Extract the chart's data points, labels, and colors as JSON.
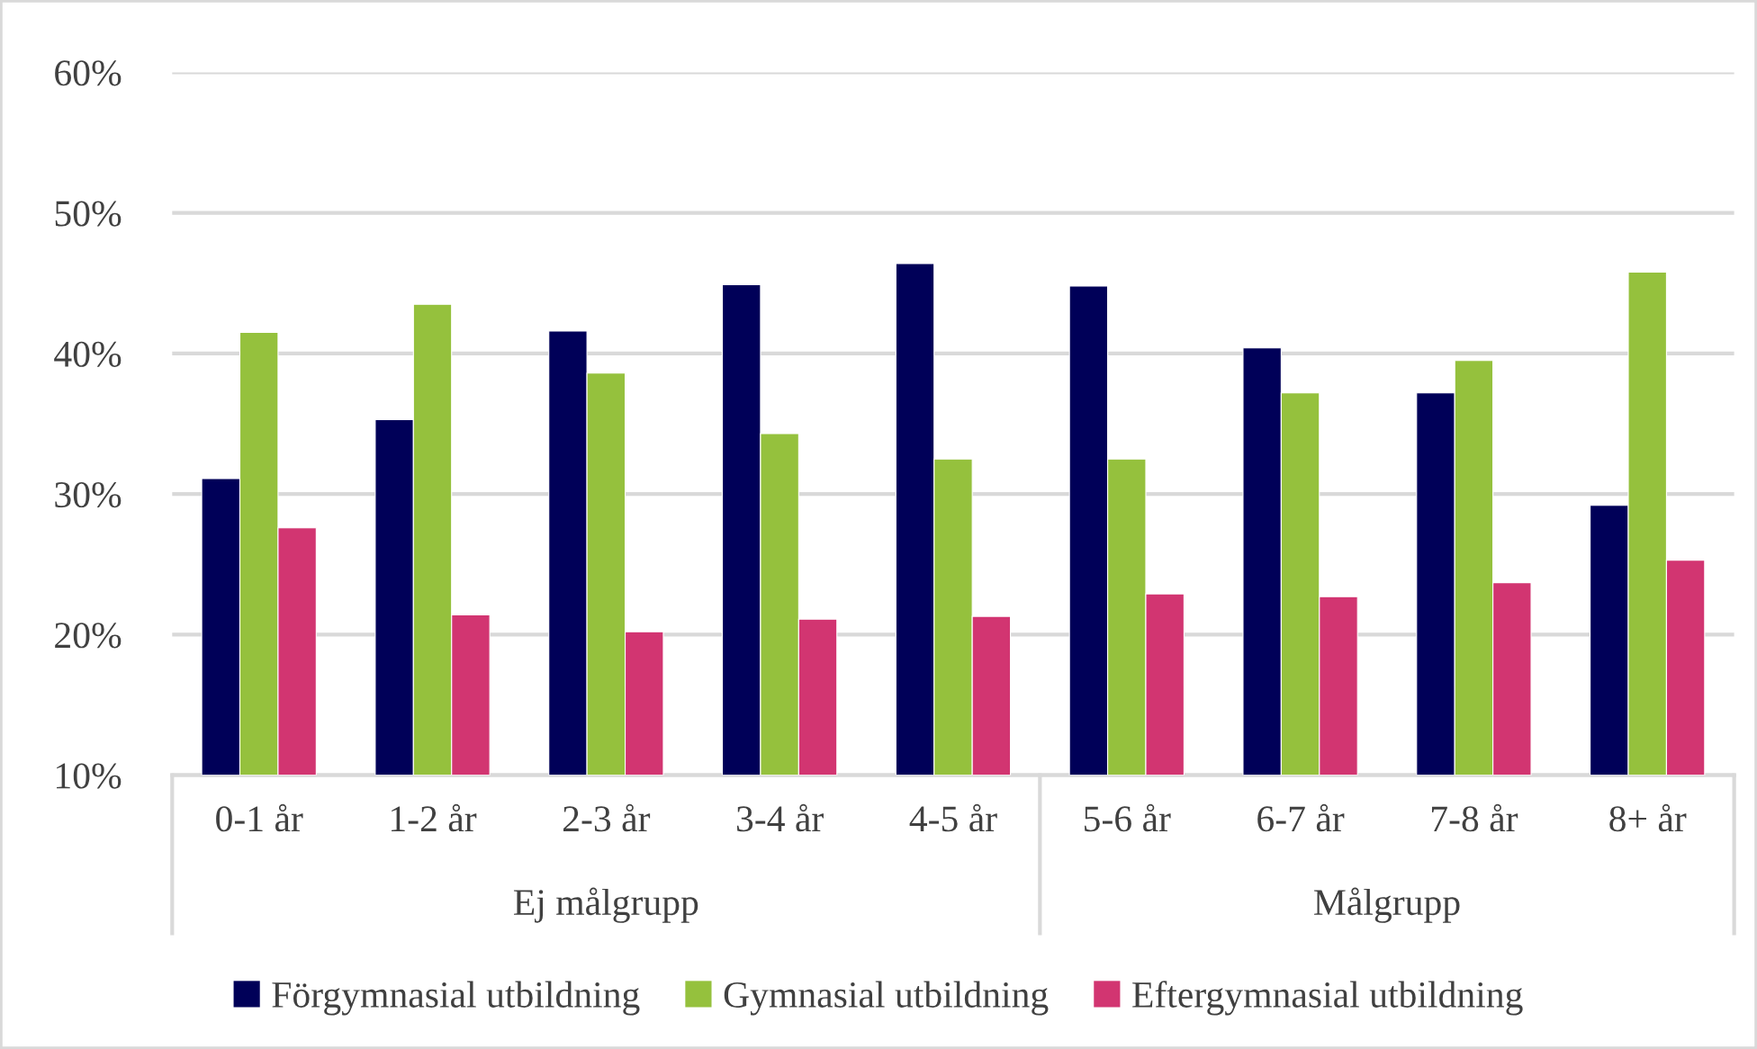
{
  "chart_data": {
    "type": "bar",
    "categories": [
      "0-1 år",
      "1-2 år",
      "2-3 år",
      "3-4 år",
      "4-5 år",
      "5-6 år",
      "6-7 år",
      "7-8 år",
      "8+ år"
    ],
    "series": [
      {
        "name": "Förgymnasial utbildning",
        "color": "#000058",
        "values": [
          31.1,
          35.3,
          41.6,
          44.9,
          46.4,
          44.8,
          40.4,
          37.2,
          29.2
        ]
      },
      {
        "name": "Gymnasial utbildning",
        "color": "#95c13d",
        "values": [
          41.5,
          43.5,
          38.6,
          34.3,
          32.5,
          32.5,
          37.2,
          39.5,
          45.8
        ]
      },
      {
        "name": "Eftergymnasial utbildning",
        "color": "#d23571",
        "values": [
          27.6,
          21.4,
          20.2,
          21.1,
          21.3,
          22.9,
          22.7,
          23.7,
          25.3
        ]
      }
    ],
    "ylim": [
      10,
      60
    ],
    "yticks": [
      {
        "value": 10,
        "label": "10%"
      },
      {
        "value": 20,
        "label": "20%"
      },
      {
        "value": 30,
        "label": "30%"
      },
      {
        "value": 40,
        "label": "40%"
      },
      {
        "value": 50,
        "label": "50%"
      },
      {
        "value": 60,
        "label": "60%"
      }
    ],
    "annotations": [
      "Ej målgrupp",
      "Målgrupp"
    ],
    "grid": "y",
    "legend": "bottom"
  }
}
